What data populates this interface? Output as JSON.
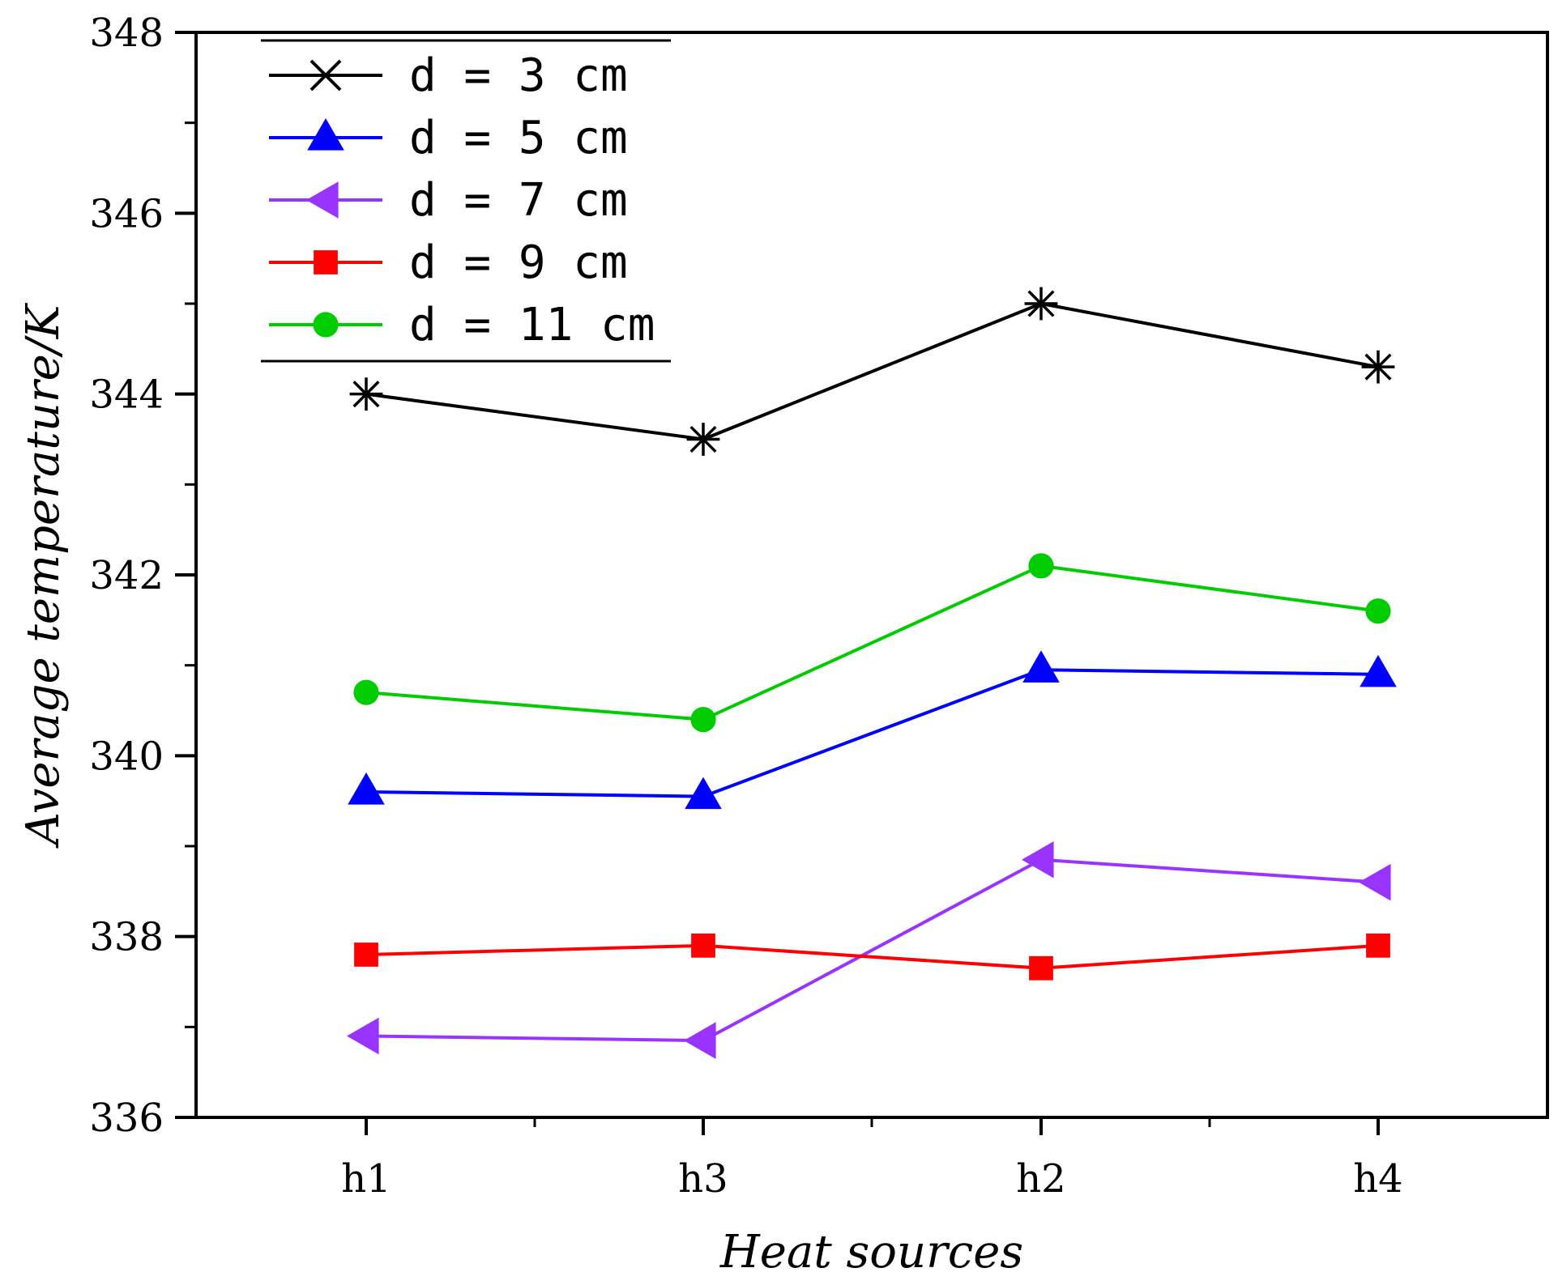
{
  "chart_data": {
    "type": "line",
    "title": "",
    "xlabel": "Heat sources",
    "ylabel": "Average temperature/K",
    "categories": [
      "h1",
      "h3",
      "h2",
      "h4"
    ],
    "ylim": [
      336,
      348
    ],
    "yticks": [
      336,
      338,
      340,
      342,
      344,
      346,
      348
    ],
    "ytick_labels": [
      "336",
      "338",
      "340",
      "342",
      "344",
      "346",
      "348"
    ],
    "grid": false,
    "legend_position": "top-left",
    "series": [
      {
        "name": "d = 3 cm",
        "marker": "star",
        "color": "#000000",
        "values": [
          344.0,
          343.5,
          345.0,
          344.3
        ]
      },
      {
        "name": "d = 5 cm",
        "marker": "triangle-up",
        "color": "#0000ff",
        "values": [
          339.6,
          339.55,
          340.95,
          340.9
        ]
      },
      {
        "name": "d = 7 cm",
        "marker": "triangle-left",
        "color": "#9933ff",
        "values": [
          336.9,
          336.85,
          338.85,
          338.6
        ]
      },
      {
        "name": "d = 9 cm",
        "marker": "square",
        "color": "#ff0000",
        "values": [
          337.8,
          337.9,
          337.65,
          337.9
        ]
      },
      {
        "name": "d = 11 cm",
        "marker": "circle",
        "color": "#00cc00",
        "values": [
          340.7,
          340.4,
          342.1,
          341.6
        ]
      }
    ]
  }
}
